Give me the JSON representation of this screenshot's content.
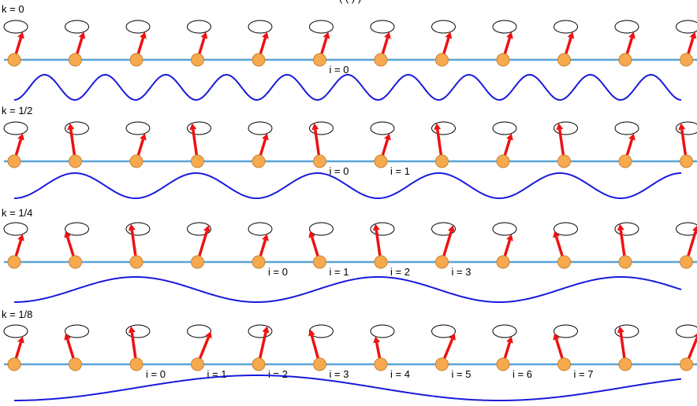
{
  "top_text": "( (  ) )",
  "colors": {
    "chain": "#5aa4d6",
    "atom_fill": "#f7a94e",
    "atom_stroke": "#c98333",
    "arrow": "#ee1111",
    "wave": "#1a1adb",
    "ellipse": "#000000"
  },
  "panels": [
    {
      "k_label": "k = 0",
      "cycles": 11,
      "site_labels": [
        {
          "site": 5,
          "text": "i = 0"
        }
      ],
      "phases": [
        0.85,
        0.85,
        0.85,
        0.85,
        0.85,
        0.85,
        0.85,
        0.85,
        0.85,
        0.85,
        0.85,
        0.85
      ]
    },
    {
      "k_label": "k = 1/2",
      "cycles": 5.5,
      "site_labels": [
        {
          "site": 5,
          "text": "i = 0"
        },
        {
          "site": 6,
          "text": "i = 1"
        }
      ],
      "phases": [
        0.85,
        0.35,
        0.85,
        0.35,
        0.85,
        0.35,
        0.85,
        0.35,
        0.85,
        0.35,
        0.85,
        0.35
      ]
    },
    {
      "k_label": "k = 1/4",
      "cycles": 2.75,
      "site_labels": [
        {
          "site": 4,
          "text": "i = 0"
        },
        {
          "site": 5,
          "text": "i = 1"
        },
        {
          "site": 6,
          "text": "i = 2"
        },
        {
          "site": 7,
          "text": "i = 3"
        }
      ],
      "phases": [
        0.85,
        0.55,
        0.35,
        0.1,
        0.85,
        0.55,
        0.35,
        0.1,
        0.85,
        0.55,
        0.35,
        0.1
      ]
    },
    {
      "k_label": "k = 1/8",
      "cycles": 1.375,
      "site_labels": [
        {
          "site": 2,
          "text": "i = 0"
        },
        {
          "site": 3,
          "text": "i = 1"
        },
        {
          "site": 4,
          "text": "i = 2"
        },
        {
          "site": 5,
          "text": "i = 3"
        },
        {
          "site": 6,
          "text": "i = 4"
        },
        {
          "site": 7,
          "text": "i = 5"
        },
        {
          "site": 8,
          "text": "i = 6"
        },
        {
          "site": 9,
          "text": "i = 7"
        }
      ],
      "phases": [
        0.85,
        0.55,
        0.35,
        0.0,
        0.15,
        0.45,
        0.65,
        0.95,
        0.85,
        0.55,
        0.35,
        0.0
      ]
    }
  ]
}
